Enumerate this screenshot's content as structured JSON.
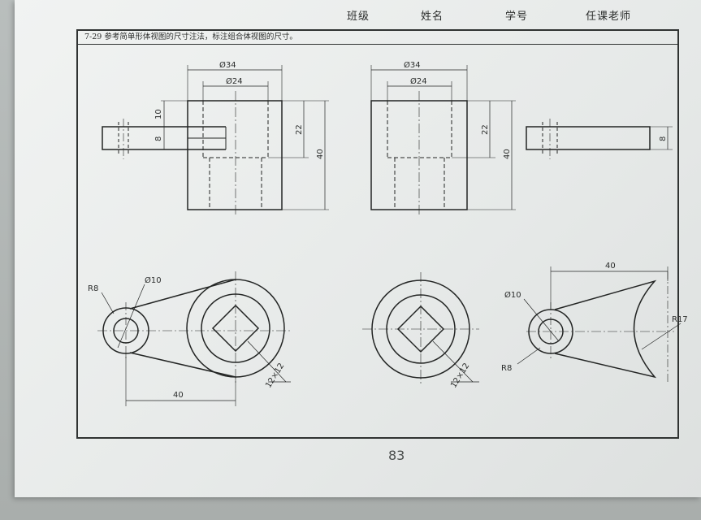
{
  "header": {
    "class_label": "班级",
    "name_label": "姓名",
    "student_id_label": "学号",
    "teacher_label": "任课老师"
  },
  "exercise": {
    "title": "7-29  参考简单形体视图的尺寸注法，标注组合体视图的尺寸。"
  },
  "page_number": "83",
  "drawing": {
    "left_view_top": {
      "d_outer": "Ø34",
      "d_inner": "Ø24",
      "dim_10": "10",
      "dim_8": "8",
      "dim_22": "22",
      "dim_40": "40"
    },
    "right_view_top": {
      "d_outer": "Ø34",
      "d_inner": "Ø24",
      "dim_22": "22",
      "dim_40": "40"
    },
    "side_plate": {
      "dim_8": "8"
    },
    "left_plan": {
      "r8": "R8",
      "d10": "Ø10",
      "square": "12×12",
      "dim_40": "40"
    },
    "right_circle": {
      "square": "12×12"
    },
    "right_plan": {
      "dim_40": "40",
      "d10": "Ø10",
      "r8": "R8",
      "r17": "R17"
    }
  }
}
